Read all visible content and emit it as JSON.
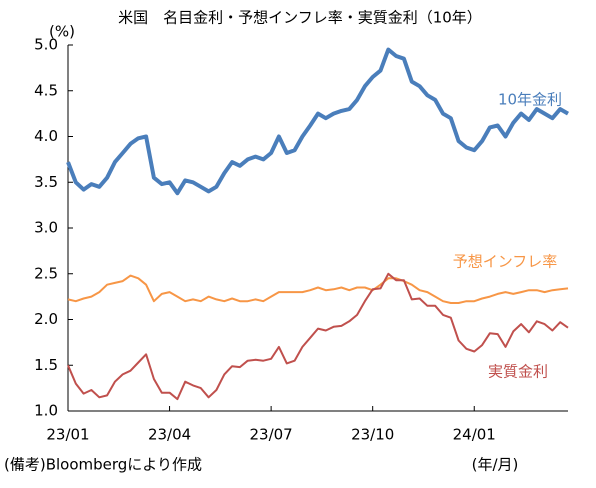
{
  "chart_data": {
    "type": "line",
    "title": "米国　名目金利・予想インフレ率・実質金利（10年）",
    "y_label": "(%)",
    "x_label": "(年/月)",
    "note": "(備考)Bloombergにより作成",
    "categories": [
      "23/01",
      null,
      null,
      null,
      null,
      null,
      null,
      null,
      null,
      null,
      null,
      null,
      null,
      "23/04",
      null,
      null,
      null,
      null,
      null,
      null,
      null,
      null,
      null,
      null,
      null,
      null,
      "23/07",
      null,
      null,
      null,
      null,
      null,
      null,
      null,
      null,
      null,
      null,
      null,
      null,
      "23/10",
      null,
      null,
      null,
      null,
      null,
      null,
      null,
      null,
      null,
      null,
      null,
      null,
      "24/01",
      null,
      null,
      null,
      null,
      null,
      null,
      null,
      null,
      null,
      null,
      null,
      null
    ],
    "series": [
      {
        "name": "10年金利",
        "color": "#4a7ebb",
        "values": [
          3.72,
          3.5,
          3.42,
          3.48,
          3.45,
          3.55,
          3.72,
          3.82,
          3.92,
          3.98,
          4.0,
          3.55,
          3.48,
          3.5,
          3.38,
          3.52,
          3.5,
          3.45,
          3.4,
          3.45,
          3.6,
          3.72,
          3.68,
          3.75,
          3.78,
          3.75,
          3.82,
          4.0,
          3.82,
          3.85,
          4.0,
          4.12,
          4.25,
          4.2,
          4.25,
          4.28,
          4.3,
          4.4,
          4.55,
          4.65,
          4.72,
          4.95,
          4.88,
          4.85,
          4.6,
          4.55,
          4.45,
          4.4,
          4.25,
          4.2,
          3.95,
          3.88,
          3.85,
          3.95,
          4.1,
          4.12,
          4.0,
          4.15,
          4.25,
          4.18,
          4.3,
          4.25,
          4.2,
          4.3,
          4.25
        ]
      },
      {
        "name": "予想インフレ率",
        "color": "#f79646",
        "values": [
          2.22,
          2.2,
          2.23,
          2.25,
          2.3,
          2.38,
          2.4,
          2.42,
          2.48,
          2.45,
          2.38,
          2.2,
          2.28,
          2.3,
          2.25,
          2.2,
          2.22,
          2.2,
          2.25,
          2.22,
          2.2,
          2.23,
          2.2,
          2.2,
          2.22,
          2.2,
          2.25,
          2.3,
          2.3,
          2.3,
          2.3,
          2.32,
          2.35,
          2.32,
          2.33,
          2.35,
          2.32,
          2.35,
          2.35,
          2.32,
          2.38,
          2.45,
          2.45,
          2.42,
          2.38,
          2.32,
          2.3,
          2.25,
          2.2,
          2.18,
          2.18,
          2.2,
          2.2,
          2.23,
          2.25,
          2.28,
          2.3,
          2.28,
          2.3,
          2.32,
          2.32,
          2.3,
          2.32,
          2.33,
          2.34
        ]
      },
      {
        "name": "実質金利",
        "color": "#c0504d",
        "values": [
          1.5,
          1.3,
          1.19,
          1.23,
          1.15,
          1.17,
          1.32,
          1.4,
          1.44,
          1.53,
          1.62,
          1.35,
          1.2,
          1.2,
          1.13,
          1.32,
          1.28,
          1.25,
          1.15,
          1.23,
          1.4,
          1.49,
          1.48,
          1.55,
          1.56,
          1.55,
          1.57,
          1.7,
          1.52,
          1.55,
          1.7,
          1.8,
          1.9,
          1.88,
          1.92,
          1.93,
          1.98,
          2.05,
          2.2,
          2.33,
          2.34,
          2.5,
          2.43,
          2.43,
          2.22,
          2.23,
          2.15,
          2.15,
          2.05,
          2.02,
          1.77,
          1.68,
          1.65,
          1.72,
          1.85,
          1.84,
          1.7,
          1.87,
          1.95,
          1.86,
          1.98,
          1.95,
          1.88,
          1.97,
          1.91
        ]
      }
    ],
    "ylim": [
      1,
      5
    ],
    "yticks": [
      {
        "value": 1,
        "label": "1.0"
      },
      {
        "value": 1.5,
        "label": "1.5"
      },
      {
        "value": 2,
        "label": "2.0"
      },
      {
        "value": 2.5,
        "label": "2.5"
      },
      {
        "value": 3,
        "label": "3.0"
      },
      {
        "value": 3.5,
        "label": "3.5"
      },
      {
        "value": 4,
        "label": "4.0"
      },
      {
        "value": 4.5,
        "label": "4.5"
      },
      {
        "value": 5,
        "label": "5.0"
      }
    ],
    "grid": false
  }
}
